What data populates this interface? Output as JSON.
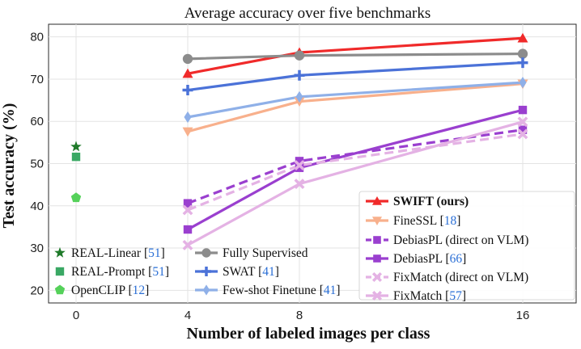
{
  "chart_data": {
    "type": "line",
    "title": "Average accuracy over five benchmarks",
    "xlabel": "Number of labeled images per class",
    "ylabel": "Test accuracy (%)",
    "xticks": [
      "0",
      "4",
      "8",
      "16"
    ],
    "yticks": [
      "20",
      "30",
      "40",
      "50",
      "60",
      "70",
      "80"
    ],
    "ylim": [
      17,
      83
    ],
    "grid": true,
    "legend_placement": "bottom",
    "series": [
      {
        "name": "SWIFT (ours)",
        "bold": true,
        "cite": "",
        "color": "#f02a2a",
        "marker": "triangle",
        "dash": false,
        "x": [
          "4",
          "8",
          "16"
        ],
        "values": [
          71.3,
          76.3,
          79.7
        ]
      },
      {
        "name": "FineSSL",
        "bold": false,
        "cite": "18",
        "color": "#f8b08c",
        "marker": "triangle-down",
        "dash": false,
        "x": [
          "4",
          "8",
          "16"
        ],
        "values": [
          57.6,
          64.7,
          68.9
        ]
      },
      {
        "name": "DebiasPL (direct on VLM)",
        "bold": false,
        "cite": "",
        "color": "#9a3fcf",
        "marker": "square",
        "dash": true,
        "x": [
          "4",
          "8",
          "16"
        ],
        "values": [
          40.6,
          50.6,
          58.0
        ]
      },
      {
        "name": "DebiasPL",
        "bold": false,
        "cite": "66",
        "color": "#9a3fcf",
        "marker": "square",
        "dash": false,
        "x": [
          "4",
          "8",
          "16"
        ],
        "values": [
          34.4,
          49.0,
          62.7
        ]
      },
      {
        "name": "FixMatch (direct on VLM)",
        "bold": false,
        "cite": "",
        "color": "#e4b2e4",
        "marker": "x",
        "dash": true,
        "x": [
          "4",
          "8",
          "16"
        ],
        "values": [
          39.0,
          49.6,
          57.0
        ]
      },
      {
        "name": "FixMatch",
        "bold": false,
        "cite": "57",
        "color": "#e4b2e4",
        "marker": "x",
        "dash": false,
        "x": [
          "4",
          "8",
          "16"
        ],
        "values": [
          30.7,
          45.2,
          59.9
        ]
      },
      {
        "name": "Fully Supervised",
        "bold": false,
        "cite": "",
        "color": "#8c8c8c",
        "marker": "circle",
        "dash": false,
        "x": [
          "4",
          "8",
          "16"
        ],
        "values": [
          74.8,
          75.6,
          76.0
        ]
      },
      {
        "name": "SWAT",
        "bold": false,
        "cite": "41",
        "color": "#4b72d8",
        "marker": "plus",
        "dash": false,
        "x": [
          "4",
          "8",
          "16"
        ],
        "values": [
          67.4,
          70.9,
          73.9
        ]
      },
      {
        "name": "Few-shot Finetune",
        "bold": false,
        "cite": "41",
        "color": "#8fb0e8",
        "marker": "diamond",
        "dash": false,
        "x": [
          "4",
          "8",
          "16"
        ],
        "values": [
          61.0,
          65.8,
          69.2
        ]
      },
      {
        "name": "REAL-Linear",
        "bold": false,
        "cite": "51",
        "color": "#1f7a2a",
        "marker": "star",
        "dash": false,
        "x": [
          "0"
        ],
        "values": [
          54.0
        ]
      },
      {
        "name": "REAL-Prompt",
        "bold": false,
        "cite": "51",
        "color": "#3aa864",
        "marker": "square",
        "dash": false,
        "x": [
          "0"
        ],
        "values": [
          51.6
        ]
      },
      {
        "name": "OpenCLIP",
        "bold": false,
        "cite": "12",
        "color": "#55d15a",
        "marker": "pentagon",
        "dash": false,
        "x": [
          "0"
        ],
        "values": [
          41.9
        ]
      }
    ]
  }
}
